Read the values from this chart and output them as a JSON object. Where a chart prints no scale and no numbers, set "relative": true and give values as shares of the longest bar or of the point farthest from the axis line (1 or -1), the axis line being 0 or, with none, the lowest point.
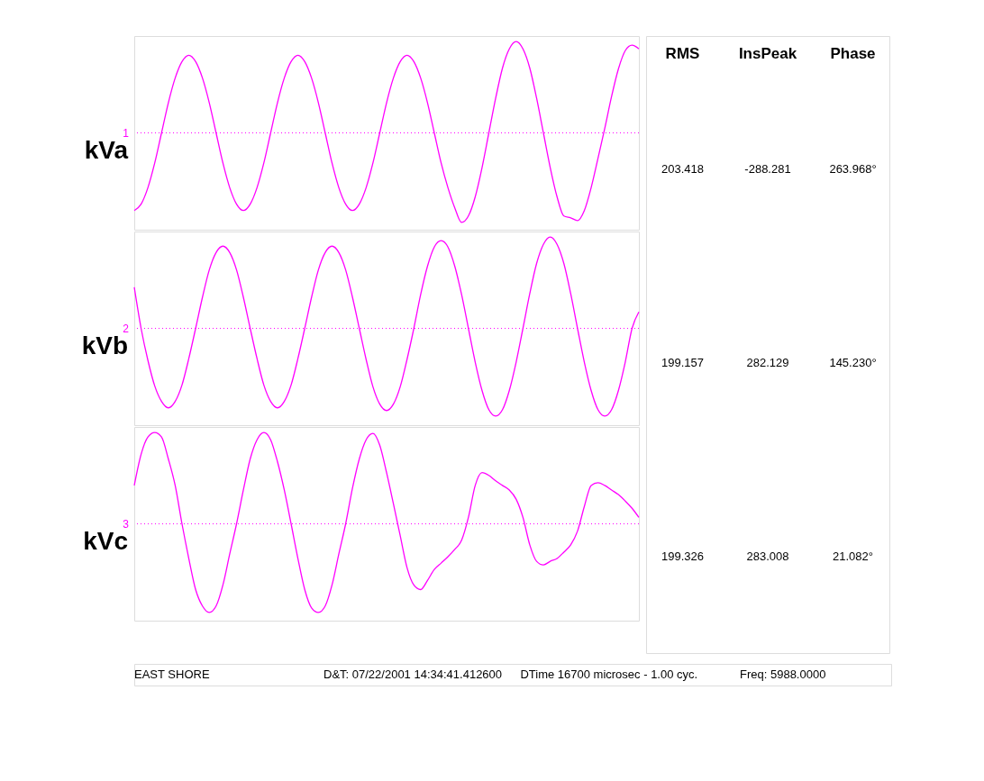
{
  "chart_data": [
    {
      "type": "line",
      "relative": true,
      "grid": false,
      "line_style": "solid",
      "categories": [
        null,
        null,
        null,
        null,
        null,
        null,
        null,
        null,
        null,
        null,
        null,
        null,
        null,
        null,
        null,
        null,
        null,
        null,
        null,
        null,
        null,
        null,
        null,
        null,
        null,
        null,
        null,
        null,
        null,
        null,
        null,
        null,
        null,
        null,
        null,
        null,
        null,
        null,
        null,
        null,
        null,
        null,
        null,
        null,
        null,
        null,
        null,
        null,
        null,
        null,
        null,
        null,
        null,
        null,
        null,
        null,
        null,
        null,
        null,
        null,
        null,
        null,
        null,
        null,
        null,
        null,
        null,
        null,
        null,
        null,
        null,
        null,
        null,
        null,
        null
      ],
      "series": [
        {
          "name": "kVa",
          "color": "#ff00ff",
          "values": [
            -0.85,
            -0.78,
            -0.6,
            -0.33,
            0,
            0.33,
            0.6,
            0.78,
            0.85,
            0.78,
            0.6,
            0.33,
            0,
            -0.33,
            -0.6,
            -0.78,
            -0.85,
            -0.78,
            -0.6,
            -0.33,
            0,
            0.33,
            0.6,
            0.78,
            0.85,
            0.78,
            0.6,
            0.33,
            0,
            -0.33,
            -0.6,
            -0.78,
            -0.85,
            -0.78,
            -0.6,
            -0.33,
            0,
            0.33,
            0.6,
            0.78,
            0.85,
            0.78,
            0.6,
            0.33,
            0,
            -0.33,
            -0.6,
            -0.82,
            -0.98,
            -0.91,
            -0.7,
            -0.38,
            0,
            0.38,
            0.71,
            0.92,
            1,
            0.92,
            0.71,
            0.38,
            0,
            -0.38,
            -0.7,
            -0.91,
            -0.93,
            -0.96,
            -0.85,
            -0.6,
            -0.28,
            0.05,
            0.4,
            0.7,
            0.9,
            0.96,
            0.92
          ]
        }
      ],
      "annotations": [
        "1"
      ],
      "ref_lines": [
        {
          "axis": "y",
          "value": 0,
          "color": "#ff00ff",
          "line_style": "dotted"
        }
      ]
    },
    {
      "type": "line",
      "relative": true,
      "grid": false,
      "line_style": "solid",
      "categories": [
        null,
        null,
        null,
        null,
        null,
        null,
        null,
        null,
        null,
        null,
        null,
        null,
        null,
        null,
        null,
        null,
        null,
        null,
        null,
        null,
        null,
        null,
        null,
        null,
        null,
        null,
        null,
        null,
        null,
        null,
        null,
        null,
        null,
        null,
        null,
        null,
        null,
        null,
        null,
        null,
        null,
        null,
        null,
        null,
        null,
        null,
        null,
        null,
        null,
        null,
        null,
        null,
        null,
        null,
        null,
        null,
        null,
        null,
        null,
        null,
        null,
        null,
        null,
        null,
        null,
        null,
        null,
        null,
        null,
        null,
        null,
        null,
        null,
        null,
        null
      ],
      "series": [
        {
          "name": "kVb",
          "color": "#ff00ff",
          "values": [
            0.45,
            0,
            -0.35,
            -0.63,
            -0.8,
            -0.87,
            -0.8,
            -0.62,
            -0.33,
            0,
            0.34,
            0.64,
            0.83,
            0.9,
            0.83,
            0.64,
            0.34,
            0,
            -0.33,
            -0.62,
            -0.8,
            -0.87,
            -0.8,
            -0.62,
            -0.33,
            0,
            0.34,
            0.64,
            0.83,
            0.9,
            0.83,
            0.64,
            0.34,
            0,
            -0.34,
            -0.64,
            -0.83,
            -0.9,
            -0.83,
            -0.64,
            -0.34,
            0,
            0.37,
            0.68,
            0.89,
            0.96,
            0.89,
            0.68,
            0.37,
            0,
            -0.37,
            -0.68,
            -0.89,
            -0.96,
            -0.89,
            -0.68,
            -0.37,
            0,
            0.38,
            0.71,
            0.92,
            1,
            0.92,
            0.71,
            0.38,
            0,
            -0.37,
            -0.68,
            -0.89,
            -0.96,
            -0.89,
            -0.68,
            -0.37,
            0,
            0.18
          ]
        }
      ],
      "annotations": [
        "2"
      ],
      "ref_lines": [
        {
          "axis": "y",
          "value": 0,
          "color": "#ff00ff",
          "line_style": "dotted"
        }
      ]
    },
    {
      "type": "line",
      "relative": true,
      "grid": false,
      "line_style": "solid",
      "categories": [
        null,
        null,
        null,
        null,
        null,
        null,
        null,
        null,
        null,
        null,
        null,
        null,
        null,
        null,
        null,
        null,
        null,
        null,
        null,
        null,
        null,
        null,
        null,
        null,
        null,
        null,
        null,
        null,
        null,
        null,
        null,
        null,
        null,
        null,
        null,
        null,
        null,
        null,
        null,
        null,
        null,
        null,
        null,
        null,
        null,
        null,
        null,
        null,
        null,
        null,
        null,
        null,
        null,
        null,
        null,
        null,
        null,
        null,
        null,
        null,
        null,
        null,
        null,
        null,
        null,
        null,
        null,
        null,
        null,
        null,
        null,
        null,
        null,
        null,
        null
      ],
      "series": [
        {
          "name": "kVc",
          "color": "#ff00ff",
          "values": [
            0.42,
            0.76,
            0.95,
            1,
            0.95,
            0.71,
            0.42,
            0,
            -0.38,
            -0.72,
            -0.9,
            -0.97,
            -0.9,
            -0.67,
            -0.33,
            0,
            0.37,
            0.71,
            0.92,
            1,
            0.92,
            0.68,
            0.37,
            0,
            -0.38,
            -0.72,
            -0.92,
            -0.97,
            -0.9,
            -0.67,
            -0.33,
            0,
            0.39,
            0.71,
            0.92,
            0.99,
            0.86,
            0.56,
            0.22,
            -0.13,
            -0.48,
            -0.67,
            -0.72,
            -0.62,
            -0.5,
            -0.43,
            -0.36,
            -0.28,
            -0.18,
            0.07,
            0.42,
            0.56,
            0.53,
            0.47,
            0.42,
            0.37,
            0.27,
            0.07,
            -0.23,
            -0.41,
            -0.45,
            -0.41,
            -0.38,
            -0.31,
            -0.23,
            -0.08,
            0.19,
            0.42,
            0.45,
            0.42,
            0.37,
            0.32,
            0.25,
            0.17,
            0.07
          ]
        }
      ],
      "annotations": [
        "3"
      ],
      "ref_lines": [
        {
          "axis": "y",
          "value": 0,
          "color": "#ff00ff",
          "line_style": "dotted"
        }
      ]
    },
    {
      "type": "other",
      "annotations": [
        "RMS",
        "InsPeak",
        "Phase",
        "203.418",
        "-288.281",
        "263.968°",
        "199.157",
        "282.129",
        "145.230°",
        "199.326",
        "283.008",
        "21.082°"
      ]
    },
    {
      "type": "other",
      "annotations": [
        "EAST SHORE",
        "D&T:  07/22/2001 14:34:41.412600",
        "DTime  16700  microsec  -   1.00 cyc.",
        "Freq:  5988.0000"
      ]
    }
  ]
}
